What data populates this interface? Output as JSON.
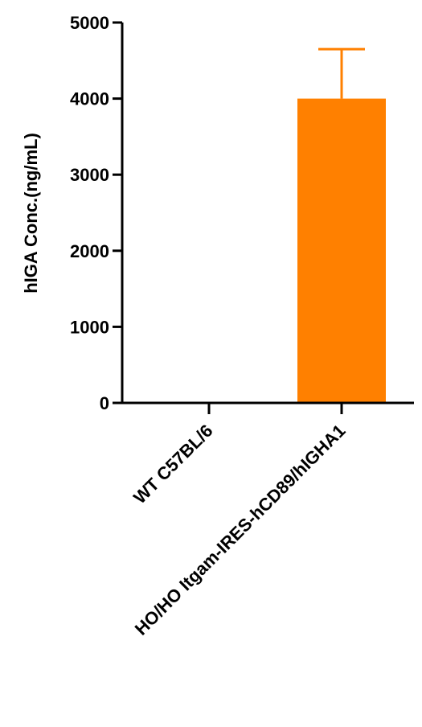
{
  "chart_data": {
    "type": "bar",
    "categories": [
      "WT C57BL/6",
      "HO/HO Itgam-IRES-hCD89/hIGHA1"
    ],
    "values": [
      0,
      4000
    ],
    "error_upper": [
      0,
      650
    ],
    "title": "",
    "xlabel": "",
    "ylabel": "hIGA Conc.(ng/mL)",
    "ylim": [
      0,
      5000
    ],
    "yticks": [
      0,
      1000,
      2000,
      3000,
      4000,
      5000
    ],
    "tick_labels": [
      "0",
      "1000",
      "2000",
      "3000",
      "4000",
      "5000"
    ],
    "bar_color": "#FF8000",
    "grid": false,
    "legend": "none"
  }
}
